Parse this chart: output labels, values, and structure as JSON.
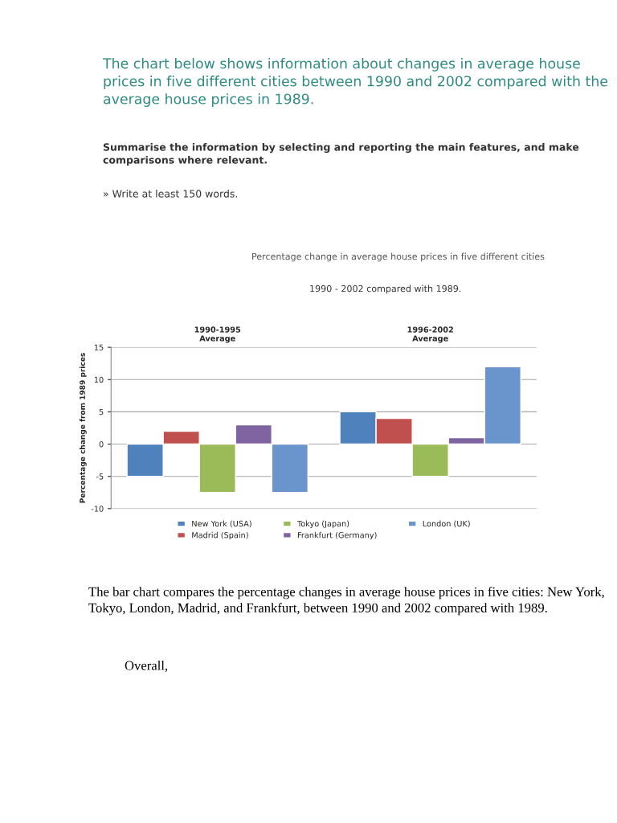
{
  "chart_data": {
    "type": "bar",
    "title": "Percentage change in average house prices in five different cities",
    "subtitle": "1990 - 2002 compared with 1989.",
    "ylabel": "Percentage change from 1989 prices",
    "categories": [
      "1990-1995\nAverage",
      "1996-2002\nAverage"
    ],
    "series": [
      {
        "name": "New York (USA)",
        "color": "#4f81bd",
        "values": [
          -5,
          5
        ]
      },
      {
        "name": "Madrid (Spain)",
        "color": "#c0504d",
        "values": [
          2,
          4
        ]
      },
      {
        "name": "Tokyo (Japan)",
        "color": "#9bbb59",
        "values": [
          -7.5,
          -5
        ]
      },
      {
        "name": "Frankfurt (Germany)",
        "color": "#8064a2",
        "values": [
          3,
          1
        ]
      },
      {
        "name": "London (UK)",
        "color": "#6a95cc",
        "values": [
          -7.5,
          12
        ]
      }
    ],
    "ylim": [
      -10,
      15
    ],
    "yticks": [
      -10,
      -5,
      0,
      5,
      10,
      15
    ],
    "grid": "y",
    "legend": "bottom",
    "annotations": [
      "The chart below shows information about changes in average house prices in five different cities between 1990 and 2002 compared with the average house prices in 1989.",
      "Summarise the information by selecting and reporting the main features, and make comparisons where relevant.",
      "» Write at least 150 words.",
      "The bar chart compares the percentage changes in average house prices in five cities: New York, Tokyo, London, Madrid, and Frankfurt, between 1990 and 2002 compared with 1989.",
      "Overall,"
    ]
  }
}
